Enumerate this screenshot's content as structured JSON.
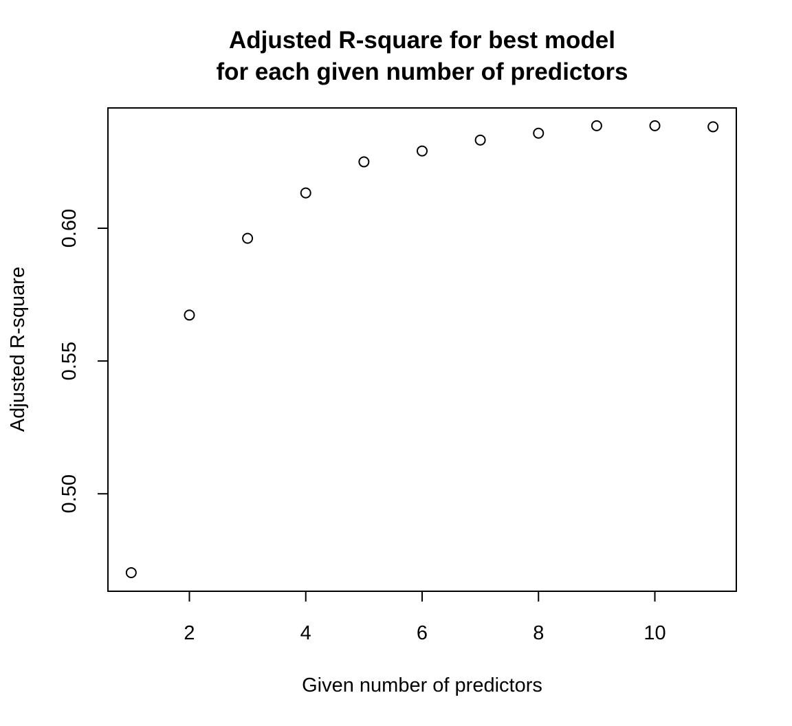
{
  "chart_data": {
    "type": "scatter",
    "title": "Adjusted R-square for best model",
    "subtitle": "for each given number of predictors",
    "xlabel": "Given number of predictors",
    "ylabel": "Adjusted R-square",
    "x": [
      1,
      2,
      3,
      4,
      5,
      6,
      7,
      8,
      9,
      10,
      11
    ],
    "y": [
      0.4703,
      0.5673,
      0.5962,
      0.6133,
      0.625,
      0.6291,
      0.6332,
      0.6358,
      0.6386,
      0.6386,
      0.6382
    ],
    "xlim": [
      0.6,
      11.4
    ],
    "ylim": [
      0.4633,
      0.6453
    ],
    "x_ticks": [
      2,
      4,
      6,
      8,
      10
    ],
    "x_tick_labels": [
      "2",
      "4",
      "6",
      "8",
      "10"
    ],
    "y_ticks": [
      0.5,
      0.55,
      0.6
    ],
    "y_tick_labels": [
      "0.50",
      "0.55",
      "0.60"
    ],
    "marker": "open-circle",
    "grid": false,
    "legend": "none"
  }
}
